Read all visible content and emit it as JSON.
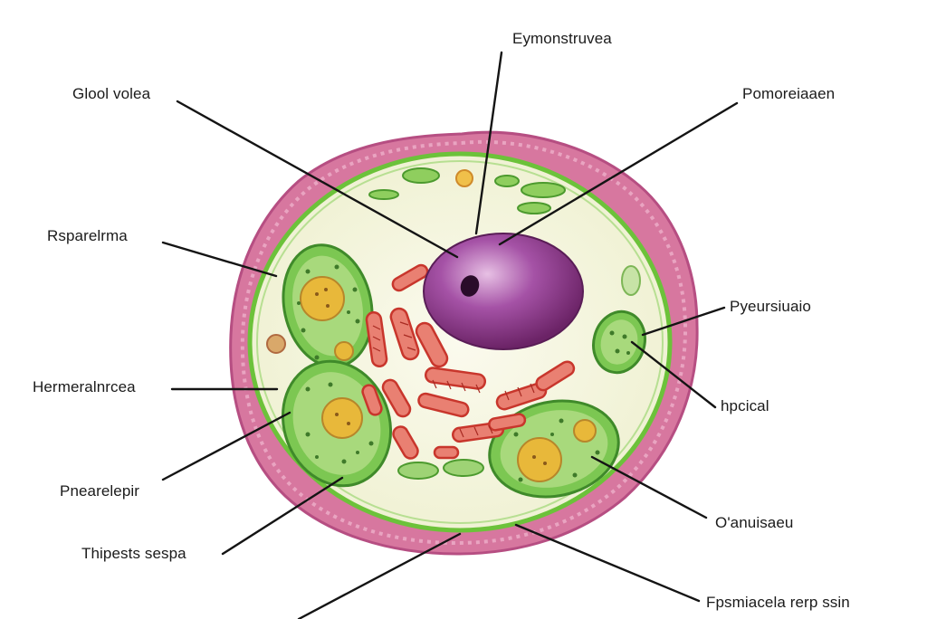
{
  "labels": {
    "top_center": "Eymonstruvea",
    "top_left": "Glool volea",
    "top_right": "Pomoreiaaen",
    "left_1": "Rsparelrma",
    "left_2": "Hermeralnrcea",
    "left_3": "Pnearelepir",
    "left_4": "Thipests sespa",
    "right_1": "Pyeursiuaio",
    "right_2": "hpcical",
    "right_3": "O'anuisaeu",
    "bottom_right": "Fpsmiacela rerp ssin"
  },
  "colors": {
    "membrane": "#c95b8f",
    "cell_wall": "#6cc23a",
    "cytoplasm": "#f7f6e3",
    "nucleus": "#8e3a8c",
    "chloroplast": "#5cae3e",
    "chloroplast_core": "#e8b83a",
    "mitochondria": "#d9463a",
    "leader_line": "#141414"
  }
}
